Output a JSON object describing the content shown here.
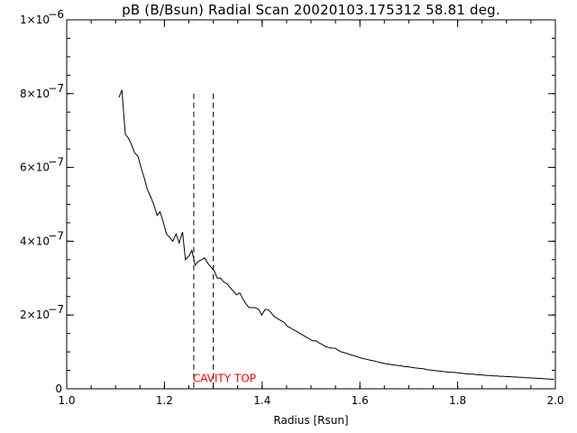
{
  "chart_data": {
    "type": "line",
    "title": "pB (B/Bsun) Radial Scan 20020103.175312 58.81 deg.",
    "xlabel": "Radius [Rsun]",
    "ylabel": "",
    "xlim": [
      1.0,
      2.0
    ],
    "ylim": [
      0,
      1e-06
    ],
    "grid": false,
    "legend": "none",
    "x_ticks": [
      {
        "value": 1.0,
        "label": "1.0"
      },
      {
        "value": 1.2,
        "label": "1.2"
      },
      {
        "value": 1.4,
        "label": "1.4"
      },
      {
        "value": 1.6,
        "label": "1.6"
      },
      {
        "value": 1.8,
        "label": "1.8"
      },
      {
        "value": 2.0,
        "label": "2.0"
      }
    ],
    "y_ticks": [
      {
        "value": 0,
        "mant": "0",
        "exp": ""
      },
      {
        "value": 2e-07,
        "mant": "2×10",
        "exp": "−7"
      },
      {
        "value": 4e-07,
        "mant": "4×10",
        "exp": "−7"
      },
      {
        "value": 6e-07,
        "mant": "6×10",
        "exp": "−7"
      },
      {
        "value": 8e-07,
        "mant": "8×10",
        "exp": "−7"
      },
      {
        "value": 1e-06,
        "mant": "1×10",
        "exp": "−6"
      }
    ],
    "series": [
      {
        "x": [
          1.107,
          1.113,
          1.12,
          1.126,
          1.133,
          1.139,
          1.146,
          1.152,
          1.159,
          1.165,
          1.172,
          1.178,
          1.185,
          1.191,
          1.198,
          1.204,
          1.211,
          1.217,
          1.224,
          1.23,
          1.237,
          1.243,
          1.25,
          1.256,
          1.263,
          1.269,
          1.276,
          1.282,
          1.289,
          1.295,
          1.302,
          1.308,
          1.315,
          1.321,
          1.328,
          1.334,
          1.341,
          1.347,
          1.354,
          1.36,
          1.367,
          1.373,
          1.38,
          1.386,
          1.393,
          1.399,
          1.406,
          1.412,
          1.419,
          1.425,
          1.432,
          1.438,
          1.445,
          1.451,
          1.458,
          1.464,
          1.471,
          1.477,
          1.484,
          1.49,
          1.497,
          1.503,
          1.51,
          1.516,
          1.523,
          1.529,
          1.536,
          1.542,
          1.549,
          1.555,
          1.562,
          1.568,
          1.575,
          1.581,
          1.588,
          1.594,
          1.601,
          1.607,
          1.614,
          1.62,
          1.627,
          1.633,
          1.64,
          1.646,
          1.653,
          1.659,
          1.666,
          1.672,
          1.679,
          1.685,
          1.692,
          1.698,
          1.705,
          1.711,
          1.718,
          1.724,
          1.731,
          1.737,
          1.744,
          1.75,
          1.757,
          1.763,
          1.77,
          1.776,
          1.783,
          1.789,
          1.796,
          1.802,
          1.809,
          1.815,
          1.822,
          1.828,
          1.835,
          1.841,
          1.848,
          1.854,
          1.861,
          1.867,
          1.874,
          1.88,
          1.887,
          1.893,
          1.9,
          1.906,
          1.913,
          1.919,
          1.926,
          1.932,
          1.939,
          1.945,
          1.952,
          1.958,
          1.965,
          1.971,
          1.978,
          1.984,
          1.991,
          1.997
        ],
        "values": [
          7.9e-07,
          8.1e-07,
          6.9e-07,
          6.8e-07,
          6.6e-07,
          6.4e-07,
          6.3e-07,
          6e-07,
          5.7e-07,
          5.4e-07,
          5.2e-07,
          5e-07,
          4.7e-07,
          4.8e-07,
          4.5e-07,
          4.2e-07,
          4.1e-07,
          4e-07,
          4.2e-07,
          3.95e-07,
          4.25e-07,
          3.5e-07,
          3.6e-07,
          3.75e-07,
          3.35e-07,
          3.45e-07,
          3.5e-07,
          3.55e-07,
          3.4e-07,
          3.3e-07,
          3.2e-07,
          3e-07,
          3e-07,
          2.9e-07,
          2.85e-07,
          2.75e-07,
          2.65e-07,
          2.55e-07,
          2.6e-07,
          2.45e-07,
          2.3e-07,
          2.2e-07,
          2.2e-07,
          2.2e-07,
          2.15e-07,
          2e-07,
          2.15e-07,
          2.15e-07,
          2.05e-07,
          1.95e-07,
          1.9e-07,
          1.85e-07,
          1.8e-07,
          1.7e-07,
          1.65e-07,
          1.6e-07,
          1.55e-07,
          1.5e-07,
          1.45e-07,
          1.4e-07,
          1.35e-07,
          1.3e-07,
          1.3e-07,
          1.25e-07,
          1.2e-07,
          1.15e-07,
          1.12e-07,
          1.1e-07,
          1.1e-07,
          1.05e-07,
          1e-07,
          9.8e-08,
          9.5e-08,
          9.2e-08,
          9e-08,
          8.7e-08,
          8.4e-08,
          8.2e-08,
          8e-08,
          7.8e-08,
          7.6e-08,
          7.4e-08,
          7.2e-08,
          7e-08,
          6.8e-08,
          6.7e-08,
          6.5e-08,
          6.4e-08,
          6.3e-08,
          6.2e-08,
          6e-08,
          6e-08,
          5.8e-08,
          5.7e-08,
          5.6e-08,
          5.5e-08,
          5.4e-08,
          5.2e-08,
          5.1e-08,
          5e-08,
          4.9e-08,
          4.8e-08,
          4.7e-08,
          4.6e-08,
          4.5e-08,
          4.5e-08,
          4.4e-08,
          4.3e-08,
          4.2e-08,
          4.1e-08,
          4e-08,
          4e-08,
          3.9e-08,
          3.8e-08,
          3.8e-08,
          3.7e-08,
          3.6e-08,
          3.6e-08,
          3.5e-08,
          3.5e-08,
          3.4e-08,
          3.4e-08,
          3.3e-08,
          3.3e-08,
          3.2e-08,
          3.2e-08,
          3.1e-08,
          3.1e-08,
          3e-08,
          3e-08,
          2.9e-08,
          2.9e-08,
          2.8e-08,
          2.8e-08,
          2.7e-08,
          2.7e-08,
          2.6e-08,
          2.6e-08
        ],
        "color": "#000000"
      }
    ],
    "markers": [
      {
        "x": 1.26,
        "y_top": 8e-07,
        "style": "dashed"
      },
      {
        "x": 1.3,
        "y_top": 8e-07,
        "style": "dashed"
      }
    ],
    "annotations": [
      {
        "text": "CAVITY TOP",
        "x": 1.258,
        "y": 3e-08,
        "color": "#ff0000"
      }
    ]
  }
}
